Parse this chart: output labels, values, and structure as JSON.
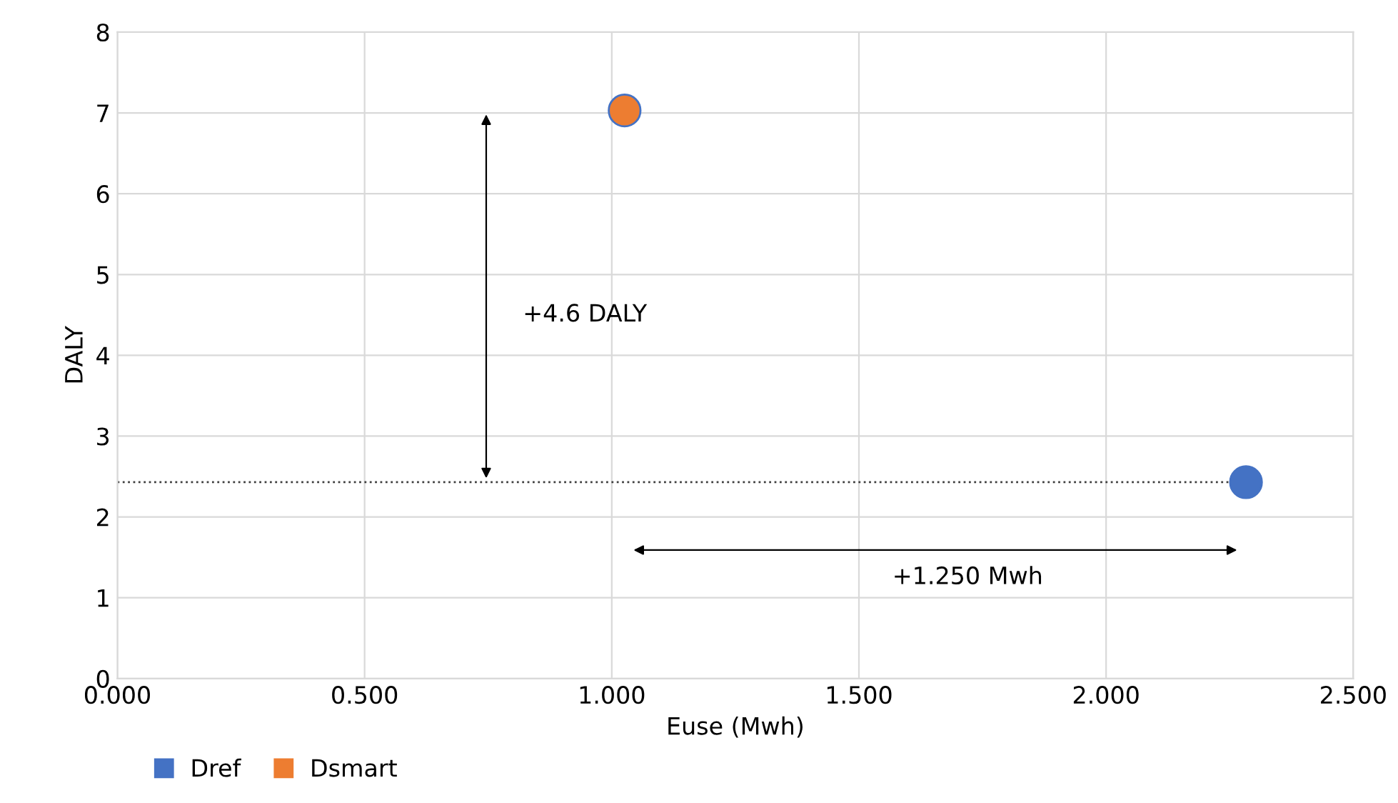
{
  "chart_data": {
    "type": "scatter",
    "xlabel": "Euse (Mwh)",
    "ylabel": "DALY",
    "series": [
      {
        "name": "Dref",
        "color": "#4472c4",
        "x": [
          2.283
        ],
        "values": [
          2.43
        ]
      },
      {
        "name": "Dsmart",
        "color": "#ed7d31",
        "x": [
          1.026
        ],
        "values": [
          7.03
        ]
      }
    ],
    "xlim": [
      0,
      2.5
    ],
    "xticks": [
      {
        "value": 0,
        "label": "0.000"
      },
      {
        "value": 0.5,
        "label": "0.500"
      },
      {
        "value": 1,
        "label": "1.000"
      },
      {
        "value": 1.5,
        "label": "1.500"
      },
      {
        "value": 2,
        "label": "2.000"
      },
      {
        "value": 2.5,
        "label": "2.500"
      }
    ],
    "ylim": [
      0,
      8
    ],
    "yticks": [
      0,
      1,
      2,
      3,
      4,
      5,
      6,
      7,
      8
    ],
    "ref_lines": [
      {
        "axis": "y",
        "value": 2.43,
        "color": "#404040",
        "line_style": "dotted"
      }
    ],
    "annotations": [
      "+4.6 DALY",
      "+1.250 Mwh"
    ],
    "grid": true,
    "legend": "bottom left",
    "marker": "circle"
  }
}
